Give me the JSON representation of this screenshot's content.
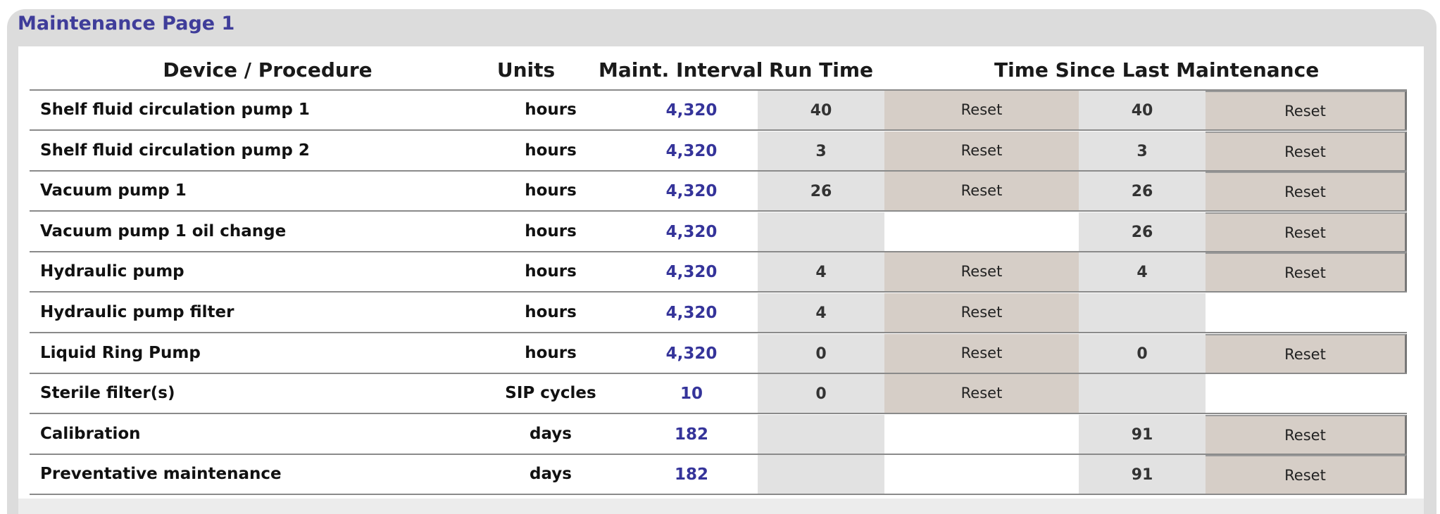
{
  "window": {
    "title": "Maintenance Page 1"
  },
  "columns": {
    "device": "Device / Procedure",
    "units": "Units",
    "interval": "Maint. Interval",
    "run_time": "Run Time",
    "since_last": "Time Since Last Maintenance"
  },
  "rows": [
    {
      "device": "Shelf fluid circulation pump 1",
      "units": "hours",
      "interval": "4,320",
      "run_time": "40",
      "run_reset": "Reset",
      "since": "40",
      "since_reset": "Reset"
    },
    {
      "device": "Shelf fluid circulation pump 2",
      "units": "hours",
      "interval": "4,320",
      "run_time": "3",
      "run_reset": "Reset",
      "since": "3",
      "since_reset": "Reset"
    },
    {
      "device": "Vacuum pump 1",
      "units": "hours",
      "interval": "4,320",
      "run_time": "26",
      "run_reset": "Reset",
      "since": "26",
      "since_reset": "Reset"
    },
    {
      "device": "Vacuum pump 1 oil change",
      "units": "hours",
      "interval": "4,320",
      "run_time": "",
      "run_reset": "",
      "since": "26",
      "since_reset": "Reset"
    },
    {
      "device": "Hydraulic pump",
      "units": "hours",
      "interval": "4,320",
      "run_time": "4",
      "run_reset": "Reset",
      "since": "4",
      "since_reset": "Reset"
    },
    {
      "device": "Hydraulic pump filter",
      "units": "hours",
      "interval": "4,320",
      "run_time": "4",
      "run_reset": "Reset",
      "since": "",
      "since_reset": ""
    },
    {
      "device": "Liquid Ring Pump",
      "units": "hours",
      "interval": "4,320",
      "run_time": "0",
      "run_reset": "Reset",
      "since": "0",
      "since_reset": "Reset"
    },
    {
      "device": "Sterile filter(s)",
      "units": "SIP cycles",
      "interval": "10",
      "run_time": "0",
      "run_reset": "Reset",
      "since": "",
      "since_reset": ""
    },
    {
      "device": "Calibration",
      "units": "days",
      "interval": "182",
      "run_time": "",
      "run_reset": "",
      "since": "91",
      "since_reset": "Reset"
    },
    {
      "device": "Preventative maintenance",
      "units": "days",
      "interval": "182",
      "run_time": "",
      "run_reset": "",
      "since": "91",
      "since_reset": "Reset"
    }
  ]
}
